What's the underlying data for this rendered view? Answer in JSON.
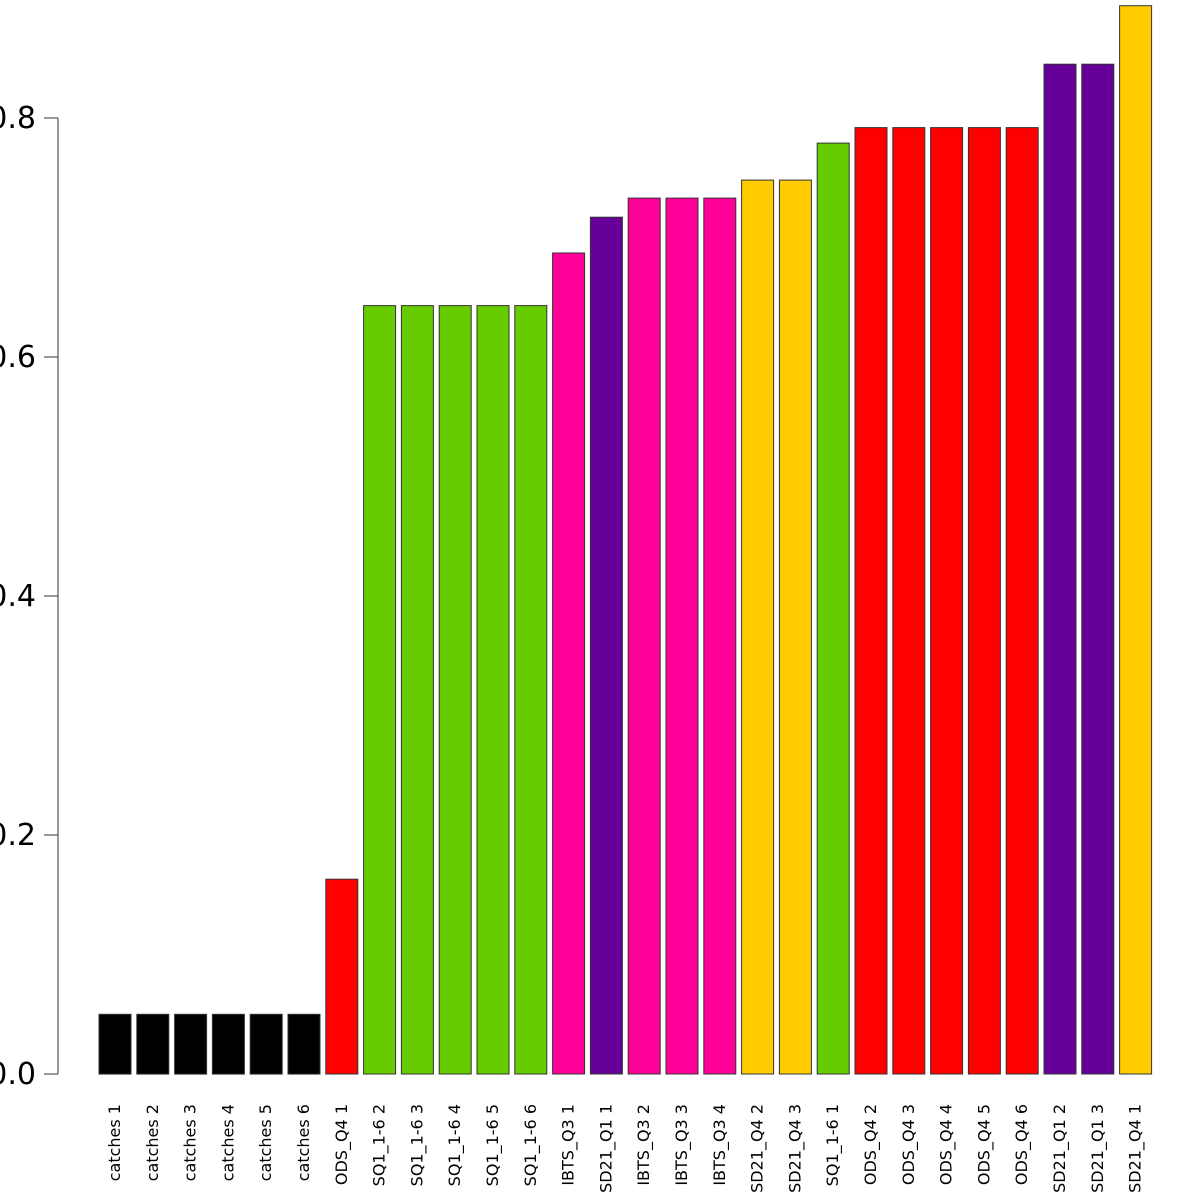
{
  "chart_data": {
    "type": "bar",
    "title": "",
    "xlabel": "",
    "ylabel": "",
    "ylim": [
      0,
      0.9
    ],
    "yticks": [
      0.0,
      0.2,
      0.4,
      0.6,
      0.8
    ],
    "ytick_labels": [
      "0.0",
      "0.2",
      "0.4",
      "0.6",
      "0.8"
    ],
    "grid": false,
    "legend": "none",
    "categories": [
      "catches 1",
      "catches 2",
      "catches 3",
      "catches 4",
      "catches 5",
      "catches 6",
      "ODS_Q4 1",
      "SQ1_1-6 2",
      "SQ1_1-6 3",
      "SQ1_1-6 4",
      "SQ1_1-6 5",
      "SQ1_1-6 6",
      "IBTS_Q3 1",
      "SD21_Q1 1",
      "IBTS_Q3 2",
      "IBTS_Q3 3",
      "IBTS_Q3 4",
      "SD21_Q4 2",
      "SD21_Q4 3",
      "SQ1_1-6 1",
      "ODS_Q4 2",
      "ODS_Q4 3",
      "ODS_Q4 4",
      "ODS_Q4 5",
      "ODS_Q4 6",
      "SD21_Q1 2",
      "SD21_Q1 3",
      "SD21_Q4 1"
    ],
    "values": [
      0.05,
      0.05,
      0.05,
      0.05,
      0.05,
      0.05,
      0.163,
      0.643,
      0.643,
      0.643,
      0.643,
      0.643,
      0.687,
      0.717,
      0.733,
      0.733,
      0.733,
      0.748,
      0.748,
      0.779,
      0.792,
      0.792,
      0.792,
      0.792,
      0.792,
      0.845,
      0.845,
      0.894
    ],
    "colors": [
      "#000000",
      "#000000",
      "#000000",
      "#000000",
      "#000000",
      "#000000",
      "#ff0000",
      "#66cc00",
      "#66cc00",
      "#66cc00",
      "#66cc00",
      "#66cc00",
      "#ff0099",
      "#660099",
      "#ff0099",
      "#ff0099",
      "#ff0099",
      "#ffcc00",
      "#ffcc00",
      "#66cc00",
      "#ff0000",
      "#ff0000",
      "#ff0000",
      "#ff0000",
      "#ff0000",
      "#660099",
      "#660099",
      "#ffcc00"
    ],
    "bar_border_color": "#333333"
  }
}
